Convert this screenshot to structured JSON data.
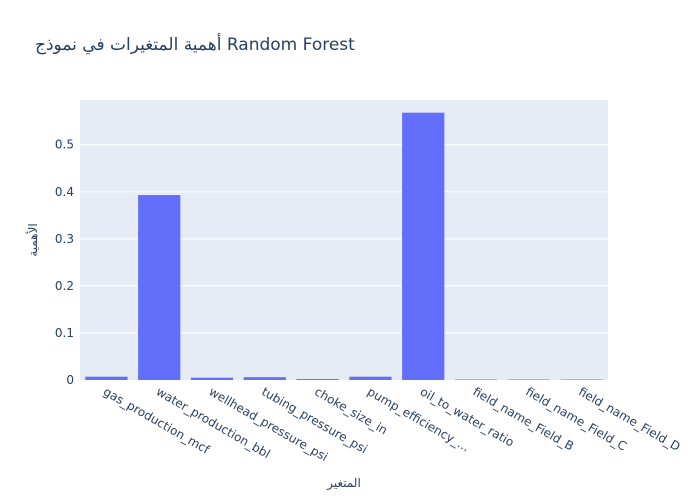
{
  "chart_data": {
    "type": "bar",
    "title": "أهمية المتغيرات في نموذج Random Forest",
    "xlabel": "المتغير",
    "ylabel": "الأهمية",
    "categories": [
      "gas_production_mcf",
      "water_production_bbl",
      "wellhead_pressure_psi",
      "tubing_pressure_psi",
      "choke_size_in",
      "pump_efficiency",
      "oil_to_water_ratio",
      "field_name_Field_B",
      "field_name_Field_C",
      "field_name_Field_D"
    ],
    "tick_labels": [
      "gas_production_mcf",
      "water_production_bbl",
      "wellhead_pressure_psi",
      "tubing_pressure_psi",
      "choke_size_in",
      "pump_efficiency_...",
      "oil_to_water_ratio",
      "field_name_Field_B",
      "field_name_Field_C",
      "field_name_Field_D"
    ],
    "values": [
      0.007,
      0.393,
      0.005,
      0.006,
      0.002,
      0.007,
      0.568,
      0.001,
      0.001,
      0.001
    ],
    "ylim": [
      0,
      0.595
    ],
    "yticks": [
      0,
      0.1,
      0.2,
      0.3,
      0.4,
      0.5
    ],
    "ytick_labels": [
      "0",
      "0.1",
      "0.2",
      "0.3",
      "0.4",
      "0.5"
    ],
    "grid": true,
    "colors": {
      "bar": "#636efa",
      "plot_bg": "#e5ecf6",
      "grid": "#ffffff",
      "text": "#2a3f5f"
    }
  }
}
